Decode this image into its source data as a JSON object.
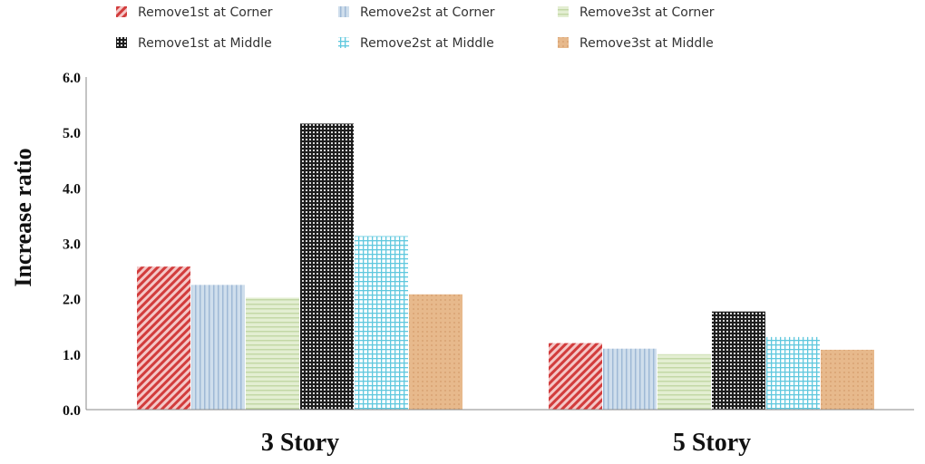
{
  "chart_data": {
    "type": "bar",
    "ylabel": "Increase ratio",
    "ylim": [
      0,
      6.0
    ],
    "yticks": [
      "0.0",
      "1.0",
      "2.0",
      "3.0",
      "4.0",
      "5.0",
      "6.0"
    ],
    "categories": [
      "3 Story",
      "5 Story"
    ],
    "grid": false,
    "legend_position": "top",
    "series": [
      {
        "name": "Remove1st at Corner",
        "values": [
          2.58,
          1.2
        ],
        "color": "#d9534f",
        "pattern": "diagonal-hatch"
      },
      {
        "name": "Remove2st at Corner",
        "values": [
          2.25,
          1.1
        ],
        "color": "#b7cde3",
        "pattern": "vertical-lines"
      },
      {
        "name": "Remove3st at Corner",
        "values": [
          2.02,
          1.0
        ],
        "color": "#d5e4bf",
        "pattern": "horizontal-lines"
      },
      {
        "name": "Remove1st at Middle",
        "values": [
          5.16,
          1.77
        ],
        "color": "#2a2a2a",
        "pattern": "dark-grid"
      },
      {
        "name": "Remove2st at Middle",
        "values": [
          3.13,
          1.31
        ],
        "color": "#5fc8de",
        "pattern": "light-grid"
      },
      {
        "name": "Remove3st at Middle",
        "values": [
          2.08,
          1.08
        ],
        "color": "#e4b68a",
        "pattern": "solid"
      }
    ]
  }
}
